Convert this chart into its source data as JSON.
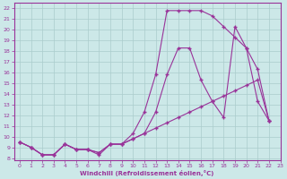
{
  "xlabel": "Windchill (Refroidissement éolien,°C)",
  "bg_color": "#cce8e8",
  "line_color": "#993399",
  "grid_color": "#aacccc",
  "xlim": [
    -0.5,
    22.5
  ],
  "ylim": [
    7.8,
    22.5
  ],
  "xticks": [
    0,
    1,
    2,
    3,
    4,
    5,
    6,
    7,
    8,
    9,
    10,
    11,
    12,
    13,
    14,
    15,
    16,
    17,
    18,
    19,
    20,
    21,
    22,
    23
  ],
  "yticks": [
    8,
    9,
    10,
    11,
    12,
    13,
    14,
    15,
    16,
    17,
    18,
    19,
    20,
    21,
    22
  ],
  "line_top_x": [
    0,
    1,
    2,
    3,
    4,
    5,
    6,
    7,
    8,
    9,
    10,
    11,
    12,
    13,
    14,
    15,
    16,
    17,
    18,
    19,
    20,
    21,
    22
  ],
  "line_top_y": [
    9.5,
    9.0,
    8.3,
    8.3,
    9.3,
    8.8,
    8.8,
    8.5,
    9.3,
    9.3,
    10.3,
    12.3,
    15.8,
    21.8,
    21.8,
    21.8,
    21.8,
    21.3,
    20.3,
    19.3,
    18.3,
    16.3,
    11.5
  ],
  "line_mid_x": [
    0,
    1,
    2,
    3,
    4,
    5,
    6,
    7,
    8,
    9,
    10,
    11,
    12,
    13,
    14,
    15,
    16,
    17,
    18,
    19,
    20,
    21,
    22
  ],
  "line_mid_y": [
    9.5,
    9.0,
    8.3,
    8.3,
    9.3,
    8.8,
    8.8,
    8.5,
    9.3,
    9.3,
    9.8,
    10.3,
    12.3,
    15.8,
    18.3,
    18.3,
    15.3,
    13.3,
    11.8,
    20.3,
    18.3,
    13.3,
    11.5
  ],
  "line_bot_x": [
    0,
    1,
    2,
    3,
    4,
    5,
    6,
    7,
    8,
    9,
    10,
    11,
    12,
    13,
    14,
    15,
    16,
    17,
    18,
    19,
    20,
    21,
    22
  ],
  "line_bot_y": [
    9.5,
    9.0,
    8.3,
    8.3,
    9.3,
    8.8,
    8.8,
    8.3,
    9.3,
    9.3,
    9.8,
    10.3,
    10.8,
    11.3,
    11.8,
    12.3,
    12.8,
    13.3,
    13.8,
    14.3,
    14.8,
    15.3,
    11.5
  ]
}
